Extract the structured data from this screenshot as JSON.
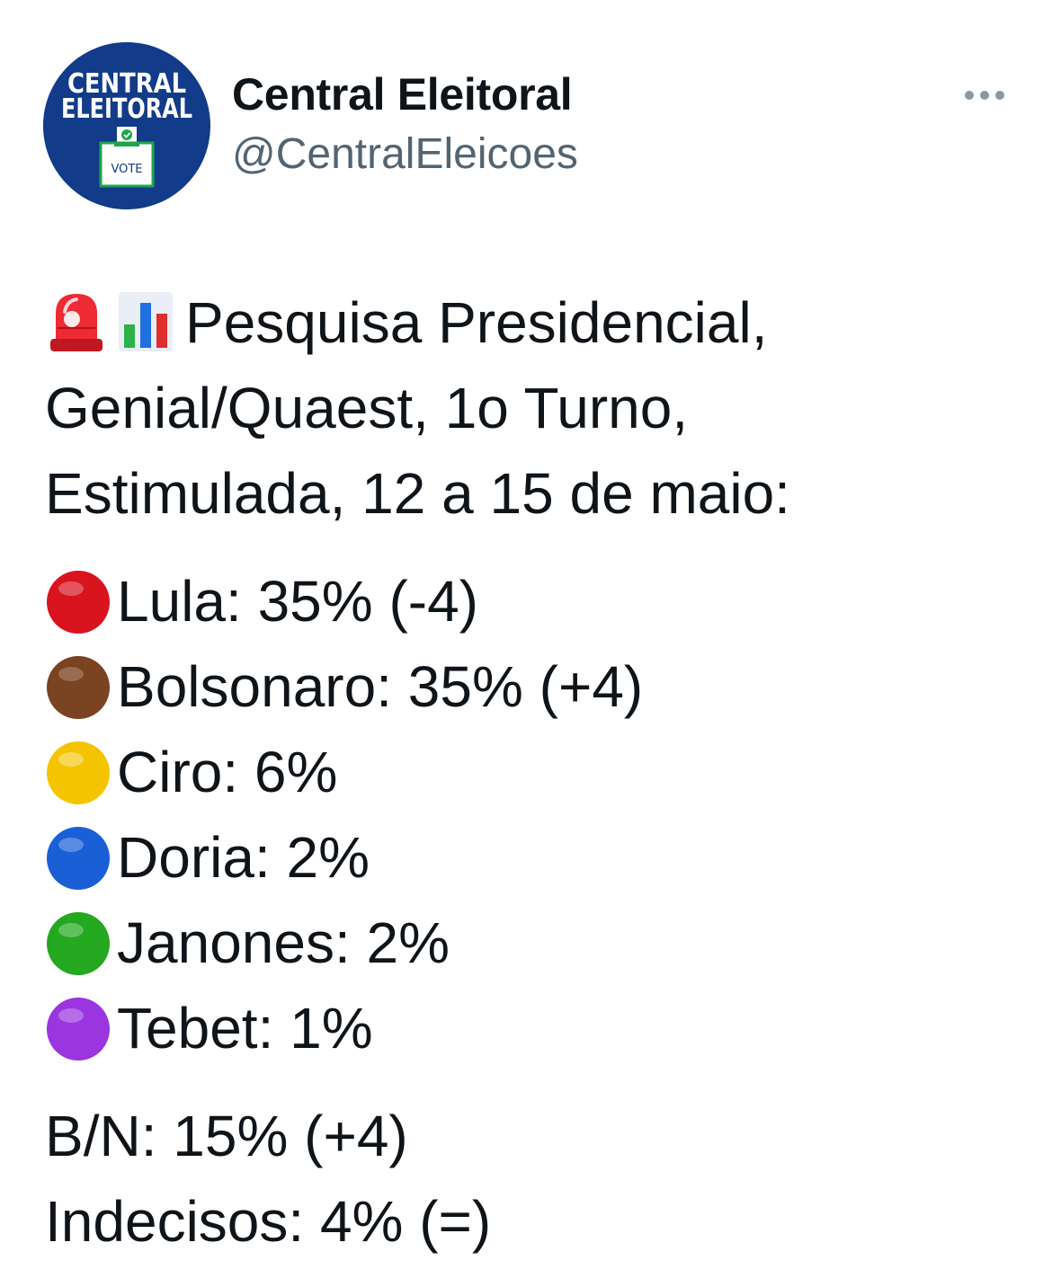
{
  "account": {
    "avatar_text_line1": "CENTRAL",
    "avatar_text_line2": "ELEITORAL",
    "avatar_box_text": "VOTE",
    "display_name": "Central Eleitoral",
    "handle": "@CentralEleicoes"
  },
  "tweet": {
    "heading_icons": [
      "rotating-light-icon",
      "bar-chart-icon"
    ],
    "heading_lines": [
      "Pesquisa Presidencial,",
      "Genial/Quaest, 1o Turno,",
      "Estimulada, 12 a 15 de maio:"
    ],
    "candidates": [
      {
        "text": "Lula: 35% (-4)",
        "dot_color": "#d9141f",
        "icon": "red-circle-icon"
      },
      {
        "text": "Bolsonaro: 35% (+4)",
        "dot_color": "#7a4322",
        "icon": "brown-circle-icon"
      },
      {
        "text": "Ciro: 6%",
        "dot_color": "#f5c400",
        "icon": "yellow-circle-icon"
      },
      {
        "text": "Doria: 2%",
        "dot_color": "#1a5fd6",
        "icon": "blue-circle-icon"
      },
      {
        "text": "Janones: 2%",
        "dot_color": "#23a81f",
        "icon": "green-circle-icon"
      },
      {
        "text": "Tebet: 1%",
        "dot_color": "#9a35e0",
        "icon": "purple-circle-icon"
      }
    ],
    "footer_lines": [
      "B/N: 15% (+4)",
      "Indecisos: 4% (=)"
    ]
  },
  "colors": {
    "avatar_bg": "#123b8a",
    "name": "#0f1419",
    "handle": "#536471",
    "more_dots": "#8b98a5"
  }
}
